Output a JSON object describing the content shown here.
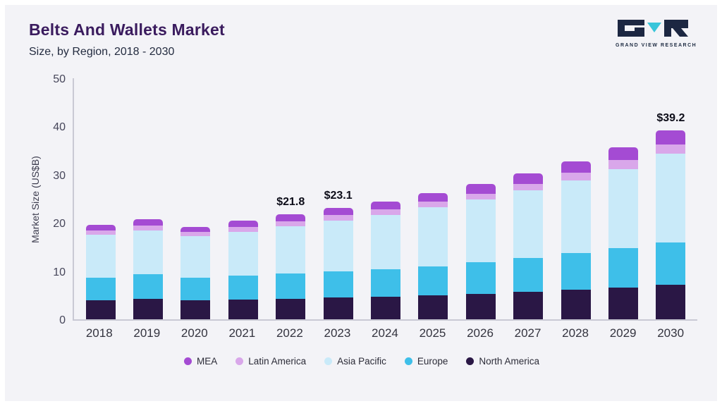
{
  "header": {
    "title": "Belts And Wallets Market",
    "subtitle": "Size, by Region, 2018 - 2030"
  },
  "logo": {
    "caption": "GRAND VIEW RESEARCH",
    "dark_color": "#1c2742",
    "accent_color": "#38c5da"
  },
  "chart_data": {
    "type": "bar",
    "stacked": true,
    "title": "Belts And Wallets Market Size, by Region, 2018 - 2030",
    "ylabel": "Market Size (US$B)",
    "ylim": [
      0,
      50
    ],
    "yticks": [
      0,
      10,
      20,
      30,
      40,
      50
    ],
    "grid": false,
    "legend_position": "bottom",
    "categories": [
      "2018",
      "2019",
      "2020",
      "2021",
      "2022",
      "2023",
      "2024",
      "2025",
      "2026",
      "2027",
      "2028",
      "2029",
      "2030"
    ],
    "series": [
      {
        "name": "North America",
        "color": "#2a1745",
        "values": [
          4.0,
          4.2,
          3.9,
          4.1,
          4.3,
          4.5,
          4.7,
          5.0,
          5.3,
          5.7,
          6.1,
          6.6,
          7.1
        ]
      },
      {
        "name": "Europe",
        "color": "#3ebfe9",
        "values": [
          4.7,
          5.1,
          4.7,
          4.9,
          5.2,
          5.4,
          5.7,
          6.0,
          6.5,
          7.0,
          7.6,
          8.2,
          8.9
        ]
      },
      {
        "name": "Asia Pacific",
        "color": "#c9eaf9",
        "values": [
          8.8,
          9.1,
          8.6,
          9.2,
          9.8,
          10.6,
          11.3,
          12.2,
          13.0,
          14.0,
          15.1,
          16.4,
          18.3
        ]
      },
      {
        "name": "Latin America",
        "color": "#d9a7ea",
        "values": [
          0.9,
          1.0,
          0.9,
          1.0,
          1.0,
          1.1,
          1.1,
          1.2,
          1.3,
          1.4,
          1.6,
          1.8,
          1.9
        ]
      },
      {
        "name": "MEA",
        "color": "#a44bd3",
        "values": [
          1.2,
          1.3,
          1.1,
          1.3,
          1.5,
          1.5,
          1.6,
          1.8,
          2.0,
          2.2,
          2.4,
          2.7,
          3.0
        ]
      }
    ],
    "totals": [
      19.6,
      20.7,
      19.2,
      20.5,
      21.8,
      23.1,
      24.4,
      26.2,
      28.1,
      30.3,
      32.8,
      35.7,
      39.2
    ],
    "labels": [
      "",
      "",
      "",
      "",
      "$21.8",
      "$23.1",
      "",
      "",
      "",
      "",
      "",
      "",
      "$39.2"
    ],
    "legend_order": [
      "MEA",
      "Latin America",
      "Asia Pacific",
      "Europe",
      "North America"
    ]
  }
}
